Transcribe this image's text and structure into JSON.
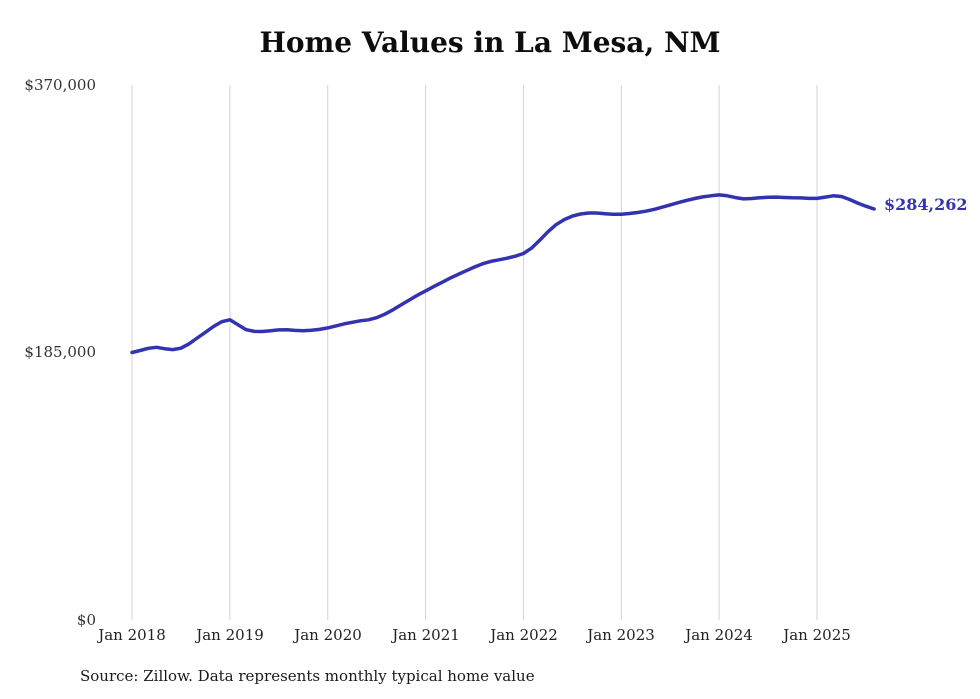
{
  "chart_data": {
    "type": "line",
    "title": "Home Values in La Mesa, NM",
    "source_note": "Source: Zillow. Data represents monthly typical home value",
    "end_label": "$284,262",
    "final_value": 284262,
    "line_color": "#3333b2",
    "accent_color": "#3333b2",
    "grid_color": "#d4d4d4",
    "ylim": [
      0,
      370000
    ],
    "grid": "vertical-only",
    "legend": "none",
    "frequency": "monthly",
    "x_start": "Jan 2018",
    "x_end": "Aug 2025",
    "y_ticks": [
      {
        "value": 0,
        "label": "$0"
      },
      {
        "value": 185000,
        "label": "$185,000"
      },
      {
        "value": 370000,
        "label": "$370,000"
      }
    ],
    "x_ticks": [
      {
        "month_index": 0,
        "label": "Jan 2018"
      },
      {
        "month_index": 12,
        "label": "Jan 2019"
      },
      {
        "month_index": 24,
        "label": "Jan 2020"
      },
      {
        "month_index": 36,
        "label": "Jan 2021"
      },
      {
        "month_index": 48,
        "label": "Jan 2022"
      },
      {
        "month_index": 60,
        "label": "Jan 2023"
      },
      {
        "month_index": 72,
        "label": "Jan 2024"
      },
      {
        "month_index": 84,
        "label": "Jan 2025"
      }
    ],
    "values": [
      185000,
      186400,
      187900,
      188600,
      187600,
      187000,
      188000,
      191000,
      195000,
      199000,
      203000,
      206300,
      207600,
      204200,
      200800,
      199600,
      199500,
      200000,
      200600,
      200700,
      200300,
      200100,
      200400,
      201000,
      202000,
      203400,
      204800,
      205900,
      206900,
      207600,
      209100,
      211500,
      214500,
      217900,
      221300,
      224600,
      227600,
      230600,
      233500,
      236400,
      239000,
      241600,
      244100,
      246400,
      248000,
      249100,
      250200,
      251600,
      253500,
      257200,
      262600,
      268500,
      273400,
      276900,
      279300,
      280800,
      281500,
      281500,
      281000,
      280600,
      280600,
      281100,
      281800,
      282700,
      284000,
      285500,
      287100,
      288700,
      290200,
      291500,
      292600,
      293400,
      294000,
      293400,
      292100,
      291200,
      291500,
      292000,
      292400,
      292500,
      292200,
      292000,
      291900,
      291600,
      291600,
      292500,
      293400,
      292900,
      290800,
      288300,
      286200,
      284262
    ]
  }
}
